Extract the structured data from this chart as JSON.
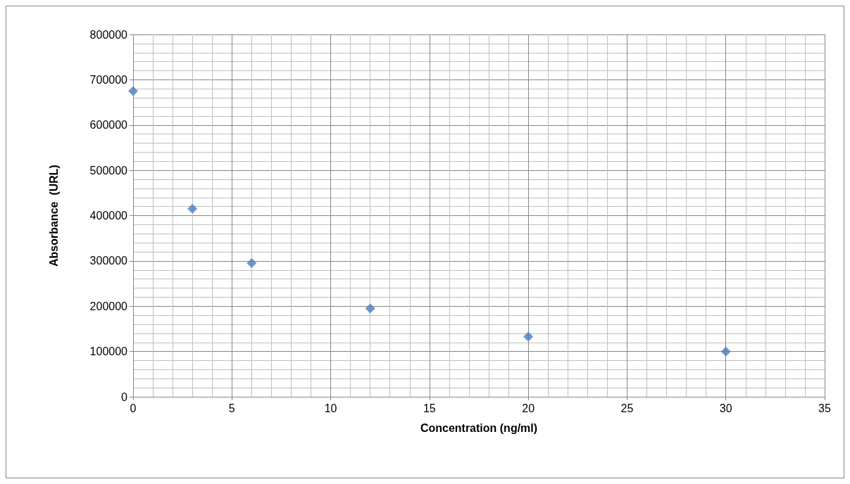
{
  "chart_data": {
    "type": "scatter",
    "xlabel": "Concentration (ng/ml)",
    "ylabel": "Absorbance  (URL)",
    "x": [
      0,
      3,
      6,
      12,
      20,
      30
    ],
    "series": [
      {
        "color": "#4a7ebb",
        "values": [
          675000,
          415000,
          295000,
          195000,
          133000,
          100000
        ]
      }
    ],
    "xlim": [
      0,
      35
    ],
    "xticks": [
      0,
      5,
      10,
      15,
      20,
      25,
      30,
      35
    ],
    "ylim": [
      0,
      800000
    ],
    "yticks": [
      0,
      100000,
      200000,
      300000,
      400000,
      500000,
      600000,
      700000,
      800000
    ],
    "grid": true,
    "marker": "diamond"
  }
}
